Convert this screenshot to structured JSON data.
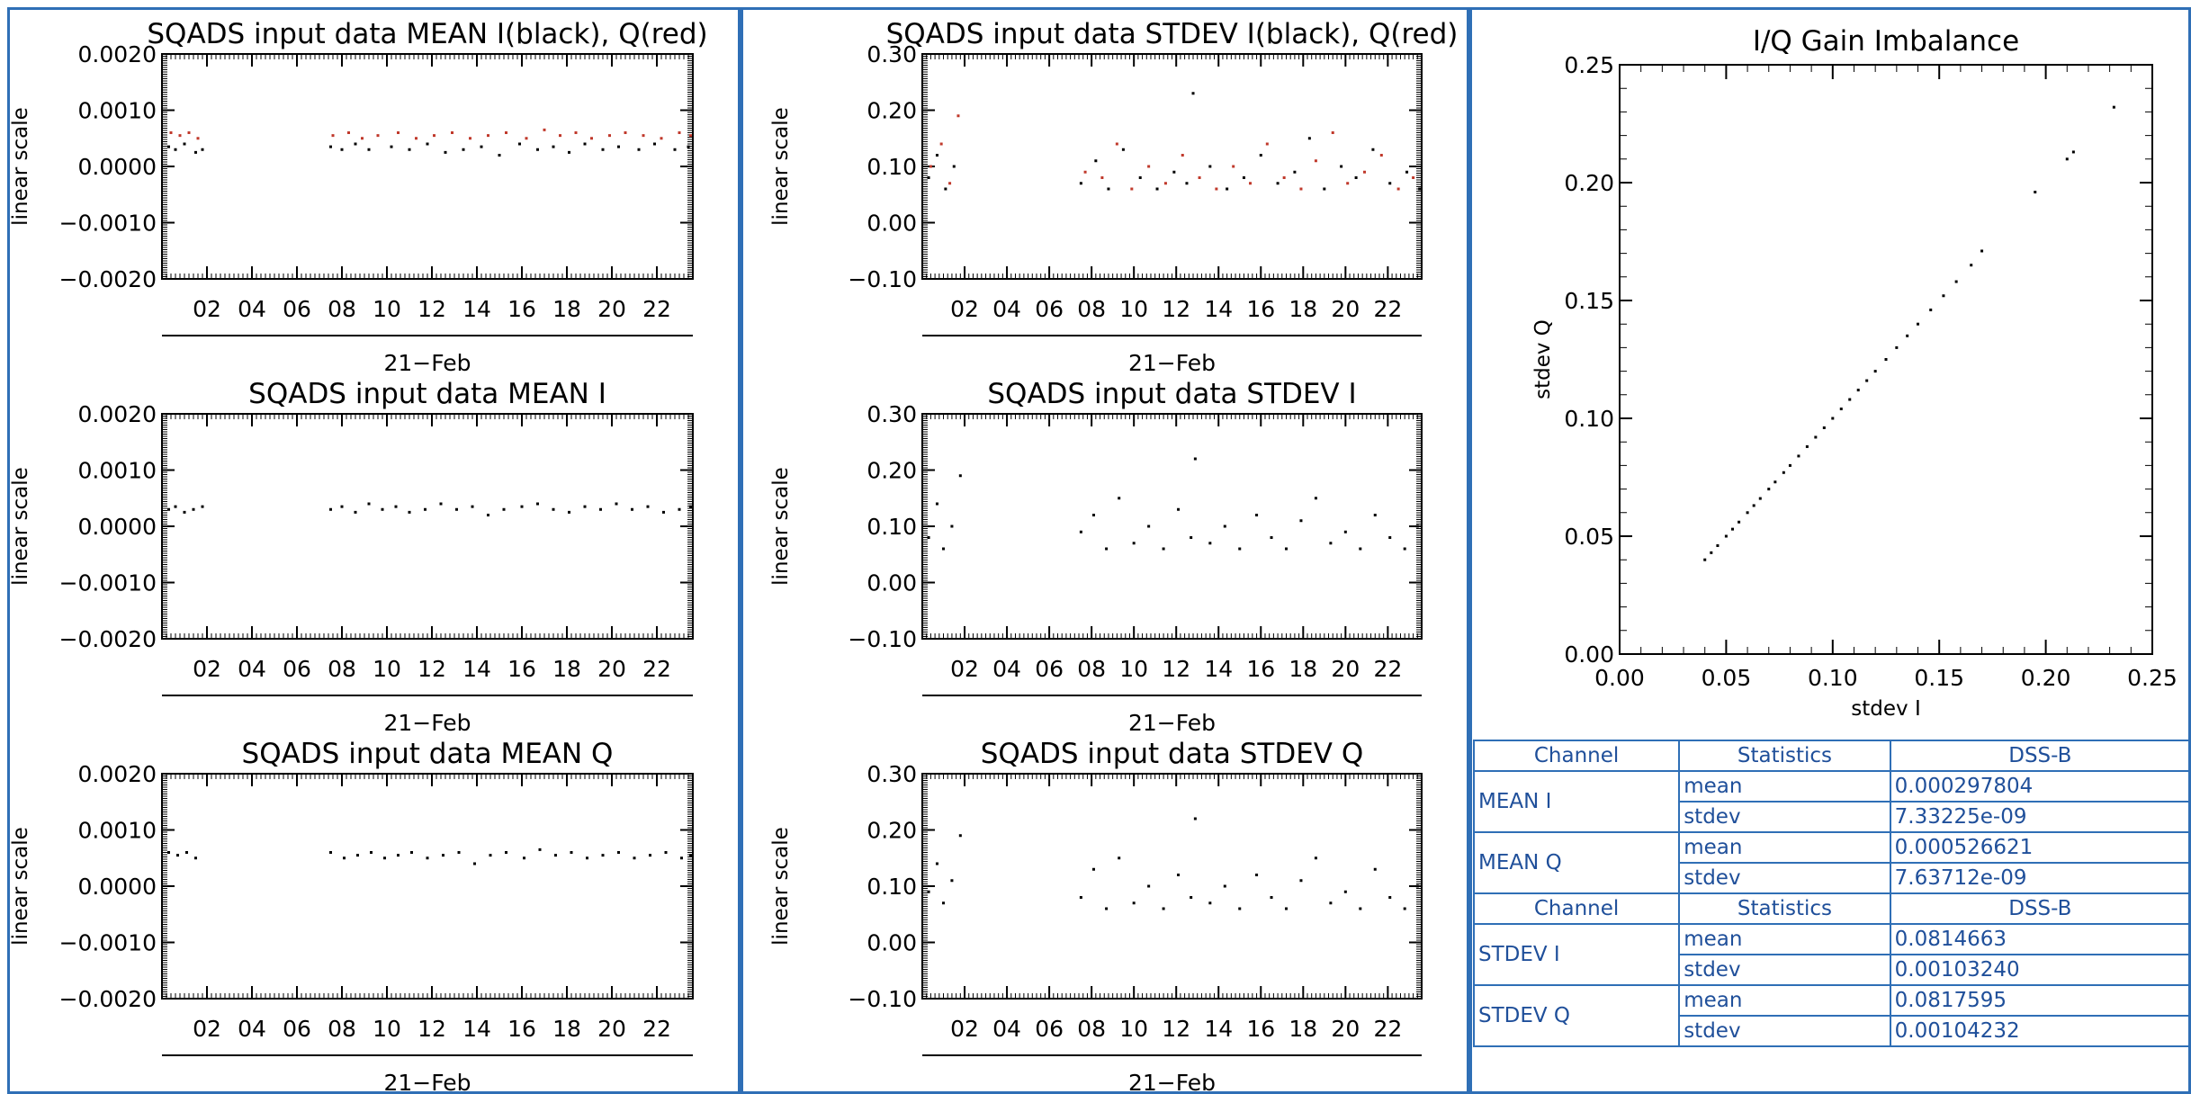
{
  "chart_data": [
    {
      "id": "mean-iq",
      "type": "scatter",
      "title": "SQADS input data MEAN I(black), Q(red)",
      "ylabel": "linear scale",
      "xlabel": "21−Feb",
      "ylim": [
        -0.002,
        0.002
      ],
      "yticks": [
        "0.0020",
        "0.0010",
        "0.0000",
        "−0.0010",
        "−0.0020"
      ],
      "ytick_values": [
        0.002,
        0.001,
        0.0,
        -0.001,
        -0.002
      ],
      "xlim": [
        0,
        23.6
      ],
      "xticks": [
        "02",
        "04",
        "06",
        "08",
        "10",
        "12",
        "14",
        "16",
        "18",
        "20",
        "22"
      ],
      "series": [
        {
          "color": "#000000",
          "x": [
            0.3,
            0.6,
            1.0,
            1.5,
            1.8,
            7.5,
            8.0,
            8.6,
            9.2,
            10.2,
            11.0,
            11.8,
            12.6,
            13.4,
            14.2,
            15.0,
            15.9,
            16.7,
            17.4,
            18.1,
            18.8,
            19.6,
            20.3,
            21.2,
            21.9,
            22.8,
            23.4
          ],
          "y": [
            0.00035,
            0.0003,
            0.0004,
            0.00025,
            0.0003,
            0.00035,
            0.0003,
            0.0004,
            0.0003,
            0.00035,
            0.0003,
            0.0004,
            0.00025,
            0.0003,
            0.00035,
            0.0002,
            0.0004,
            0.0003,
            0.00035,
            0.00025,
            0.0004,
            0.0003,
            0.00035,
            0.0003,
            0.0004,
            0.0003,
            0.00035
          ]
        },
        {
          "color": "#c0392b",
          "x": [
            0.4,
            0.8,
            1.2,
            1.6,
            7.6,
            8.3,
            8.9,
            9.6,
            10.5,
            11.3,
            12.1,
            12.9,
            13.7,
            14.5,
            15.3,
            16.2,
            17.0,
            17.7,
            18.4,
            19.1,
            19.9,
            20.6,
            21.4,
            22.2,
            23.0,
            23.5
          ],
          "y": [
            0.0006,
            0.00055,
            0.0006,
            0.0005,
            0.00055,
            0.0006,
            0.0005,
            0.00055,
            0.0006,
            0.0005,
            0.00055,
            0.0006,
            0.0005,
            0.00055,
            0.0006,
            0.0005,
            0.00065,
            0.00055,
            0.0006,
            0.0005,
            0.00055,
            0.0006,
            0.00055,
            0.0005,
            0.0006,
            0.00055
          ]
        }
      ]
    },
    {
      "id": "stdev-iq",
      "type": "scatter",
      "title": "SQADS input data STDEV I(black), Q(red)",
      "ylabel": "linear scale",
      "xlabel": "21−Feb",
      "ylim": [
        -0.1,
        0.3
      ],
      "yticks": [
        "0.30",
        "0.20",
        "0.10",
        "0.00",
        "−0.10"
      ],
      "ytick_values": [
        0.3,
        0.2,
        0.1,
        0.0,
        -0.1
      ],
      "xlim": [
        0,
        23.6
      ],
      "xticks": [
        "02",
        "04",
        "06",
        "08",
        "10",
        "12",
        "14",
        "16",
        "18",
        "20",
        "22"
      ],
      "series": [
        {
          "color": "#000000",
          "x": [
            0.3,
            0.7,
            1.1,
            1.5,
            7.5,
            8.2,
            8.8,
            9.5,
            10.3,
            11.1,
            11.9,
            12.5,
            12.8,
            13.6,
            14.4,
            15.2,
            16.0,
            16.8,
            17.6,
            18.3,
            19.0,
            19.8,
            20.5,
            21.3,
            22.1,
            22.9,
            23.5
          ],
          "y": [
            0.08,
            0.12,
            0.06,
            0.1,
            0.07,
            0.11,
            0.06,
            0.13,
            0.08,
            0.06,
            0.09,
            0.07,
            0.23,
            0.1,
            0.06,
            0.08,
            0.12,
            0.07,
            0.09,
            0.15,
            0.06,
            0.1,
            0.08,
            0.13,
            0.07,
            0.09,
            0.06
          ]
        },
        {
          "color": "#c0392b",
          "x": [
            0.4,
            0.9,
            1.3,
            1.7,
            7.7,
            8.5,
            9.2,
            9.9,
            10.7,
            11.5,
            12.3,
            13.1,
            13.9,
            14.7,
            15.5,
            16.3,
            17.1,
            17.9,
            18.6,
            19.4,
            20.1,
            20.9,
            21.7,
            22.5,
            23.2
          ],
          "y": [
            0.1,
            0.14,
            0.07,
            0.19,
            0.09,
            0.08,
            0.14,
            0.06,
            0.1,
            0.07,
            0.12,
            0.08,
            0.06,
            0.1,
            0.07,
            0.14,
            0.08,
            0.06,
            0.11,
            0.16,
            0.07,
            0.09,
            0.12,
            0.06,
            0.08
          ]
        }
      ]
    },
    {
      "id": "mean-i",
      "type": "scatter",
      "title": "SQADS input data MEAN I",
      "ylabel": "linear scale",
      "xlabel": "21−Feb",
      "ylim": [
        -0.002,
        0.002
      ],
      "yticks": [
        "0.0020",
        "0.0010",
        "0.0000",
        "−0.0010",
        "−0.0020"
      ],
      "ytick_values": [
        0.002,
        0.001,
        0.0,
        -0.001,
        -0.002
      ],
      "xlim": [
        0,
        23.6
      ],
      "xticks": [
        "02",
        "04",
        "06",
        "08",
        "10",
        "12",
        "14",
        "16",
        "18",
        "20",
        "22"
      ],
      "series": [
        {
          "color": "#000000",
          "x": [
            0.3,
            0.6,
            1.0,
            1.4,
            1.8,
            7.5,
            8.0,
            8.6,
            9.2,
            9.8,
            10.4,
            11.0,
            11.7,
            12.4,
            13.1,
            13.8,
            14.5,
            15.2,
            16.0,
            16.7,
            17.4,
            18.1,
            18.8,
            19.5,
            20.2,
            20.9,
            21.6,
            22.3,
            23.0,
            23.5
          ],
          "y": [
            0.0003,
            0.00035,
            0.00025,
            0.0003,
            0.00035,
            0.0003,
            0.00035,
            0.00025,
            0.0004,
            0.0003,
            0.00035,
            0.00025,
            0.0003,
            0.0004,
            0.0003,
            0.00035,
            0.0002,
            0.0003,
            0.00035,
            0.0004,
            0.0003,
            0.00025,
            0.00035,
            0.0003,
            0.0004,
            0.0003,
            0.00035,
            0.00025,
            0.0003,
            0.00035
          ]
        }
      ]
    },
    {
      "id": "stdev-i",
      "type": "scatter",
      "title": "SQADS input data STDEV I",
      "ylabel": "linear scale",
      "xlabel": "21−Feb",
      "ylim": [
        -0.1,
        0.3
      ],
      "yticks": [
        "0.30",
        "0.20",
        "0.10",
        "0.00",
        "−0.10"
      ],
      "ytick_values": [
        0.3,
        0.2,
        0.1,
        0.0,
        -0.1
      ],
      "xlim": [
        0,
        23.6
      ],
      "xticks": [
        "02",
        "04",
        "06",
        "08",
        "10",
        "12",
        "14",
        "16",
        "18",
        "20",
        "22"
      ],
      "series": [
        {
          "color": "#000000",
          "x": [
            0.3,
            0.7,
            1.0,
            1.4,
            1.8,
            7.5,
            8.1,
            8.7,
            9.3,
            10.0,
            10.7,
            11.4,
            12.1,
            12.7,
            12.9,
            13.6,
            14.3,
            15.0,
            15.8,
            16.5,
            17.2,
            17.9,
            18.6,
            19.3,
            20.0,
            20.7,
            21.4,
            22.1,
            22.8,
            23.4
          ],
          "y": [
            0.08,
            0.14,
            0.06,
            0.1,
            0.19,
            0.09,
            0.12,
            0.06,
            0.15,
            0.07,
            0.1,
            0.06,
            0.13,
            0.08,
            0.22,
            0.07,
            0.1,
            0.06,
            0.12,
            0.08,
            0.06,
            0.11,
            0.15,
            0.07,
            0.09,
            0.06,
            0.12,
            0.08,
            0.06,
            0.1
          ]
        }
      ]
    },
    {
      "id": "mean-q",
      "type": "scatter",
      "title": "SQADS input data MEAN Q",
      "ylabel": "linear scale",
      "xlabel": "21−Feb",
      "ylim": [
        -0.002,
        0.002
      ],
      "yticks": [
        "0.0020",
        "0.0010",
        "0.0000",
        "−0.0010",
        "−0.0020"
      ],
      "ytick_values": [
        0.002,
        0.001,
        0.0,
        -0.001,
        -0.002
      ],
      "xlim": [
        0,
        23.6
      ],
      "xticks": [
        "02",
        "04",
        "06",
        "08",
        "10",
        "12",
        "14",
        "16",
        "18",
        "20",
        "22"
      ],
      "series": [
        {
          "color": "#000000",
          "x": [
            0.3,
            0.7,
            1.1,
            1.5,
            7.5,
            8.1,
            8.7,
            9.3,
            9.9,
            10.5,
            11.1,
            11.8,
            12.5,
            13.2,
            13.9,
            14.6,
            15.3,
            16.1,
            16.8,
            17.5,
            18.2,
            18.9,
            19.6,
            20.3,
            21.0,
            21.7,
            22.4,
            23.1,
            23.5
          ],
          "y": [
            0.0006,
            0.00055,
            0.0006,
            0.0005,
            0.0006,
            0.0005,
            0.00055,
            0.0006,
            0.0005,
            0.00055,
            0.0006,
            0.0005,
            0.00055,
            0.0006,
            0.0004,
            0.00055,
            0.0006,
            0.0005,
            0.00065,
            0.00055,
            0.0006,
            0.0005,
            0.00055,
            0.0006,
            0.0005,
            0.00055,
            0.0006,
            0.0005,
            0.00055
          ]
        }
      ]
    },
    {
      "id": "stdev-q",
      "type": "scatter",
      "title": "SQADS input data STDEV Q",
      "ylabel": "linear scale",
      "xlabel": "21−Feb",
      "ylim": [
        -0.1,
        0.3
      ],
      "yticks": [
        "0.30",
        "0.20",
        "0.10",
        "0.00",
        "−0.10"
      ],
      "ytick_values": [
        0.3,
        0.2,
        0.1,
        0.0,
        -0.1
      ],
      "xlim": [
        0,
        23.6
      ],
      "xticks": [
        "02",
        "04",
        "06",
        "08",
        "10",
        "12",
        "14",
        "16",
        "18",
        "20",
        "22"
      ],
      "series": [
        {
          "color": "#000000",
          "x": [
            0.3,
            0.7,
            1.0,
            1.4,
            1.8,
            7.5,
            8.1,
            8.7,
            9.3,
            10.0,
            10.7,
            11.4,
            12.1,
            12.7,
            12.9,
            13.6,
            14.3,
            15.0,
            15.8,
            16.5,
            17.2,
            17.9,
            18.6,
            19.3,
            20.0,
            20.7,
            21.4,
            22.1,
            22.8,
            23.4
          ],
          "y": [
            0.09,
            0.14,
            0.07,
            0.11,
            0.19,
            0.08,
            0.13,
            0.06,
            0.15,
            0.07,
            0.1,
            0.06,
            0.12,
            0.08,
            0.22,
            0.07,
            0.1,
            0.06,
            0.12,
            0.08,
            0.06,
            0.11,
            0.15,
            0.07,
            0.09,
            0.06,
            0.13,
            0.08,
            0.06,
            0.1
          ]
        }
      ]
    },
    {
      "id": "gain-imbalance",
      "type": "scatter",
      "title": "I/Q Gain Imbalance",
      "xlabel": "stdev I",
      "ylabel": "stdev Q",
      "xlim": [
        0.0,
        0.25
      ],
      "ylim": [
        0.0,
        0.25
      ],
      "xticks": [
        "0.00",
        "0.05",
        "0.10",
        "0.15",
        "0.20",
        "0.25"
      ],
      "xtick_values": [
        0.0,
        0.05,
        0.1,
        0.15,
        0.2,
        0.25
      ],
      "yticks": [
        "0.25",
        "0.20",
        "0.15",
        "0.10",
        "0.05",
        "0.00"
      ],
      "ytick_values": [
        0.25,
        0.2,
        0.15,
        0.1,
        0.05,
        0.0
      ],
      "series": [
        {
          "color": "#000000",
          "x": [
            0.04,
            0.043,
            0.046,
            0.05,
            0.053,
            0.056,
            0.06,
            0.063,
            0.066,
            0.07,
            0.073,
            0.077,
            0.08,
            0.084,
            0.088,
            0.092,
            0.096,
            0.1,
            0.104,
            0.108,
            0.112,
            0.116,
            0.12,
            0.125,
            0.13,
            0.135,
            0.14,
            0.146,
            0.152,
            0.158,
            0.165,
            0.17,
            0.195,
            0.21,
            0.213,
            0.232
          ],
          "y": [
            0.04,
            0.043,
            0.046,
            0.05,
            0.053,
            0.056,
            0.06,
            0.063,
            0.066,
            0.07,
            0.073,
            0.077,
            0.08,
            0.084,
            0.088,
            0.092,
            0.096,
            0.1,
            0.104,
            0.108,
            0.112,
            0.116,
            0.12,
            0.125,
            0.13,
            0.135,
            0.14,
            0.146,
            0.152,
            0.158,
            0.165,
            0.171,
            0.196,
            0.21,
            0.213,
            0.232
          ]
        }
      ]
    }
  ],
  "table": {
    "headers": [
      "Channel",
      "Statistics",
      "DSS-B"
    ],
    "groups": [
      {
        "channel": "MEAN I",
        "rows": [
          {
            "stat": "mean",
            "value": "0.000297804"
          },
          {
            "stat": "stdev",
            "value": "7.33225e-09"
          }
        ]
      },
      {
        "channel": "MEAN Q",
        "rows": [
          {
            "stat": "mean",
            "value": "0.000526621"
          },
          {
            "stat": "stdev",
            "value": "7.63712e-09"
          }
        ]
      },
      {
        "channel": "STDEV I",
        "rows": [
          {
            "stat": "mean",
            "value": "0.0814663"
          },
          {
            "stat": "stdev",
            "value": "0.00103240"
          }
        ]
      },
      {
        "channel": "STDEV Q",
        "rows": [
          {
            "stat": "mean",
            "value": "0.0817595"
          },
          {
            "stat": "stdev",
            "value": "0.00104232"
          }
        ]
      }
    ]
  }
}
